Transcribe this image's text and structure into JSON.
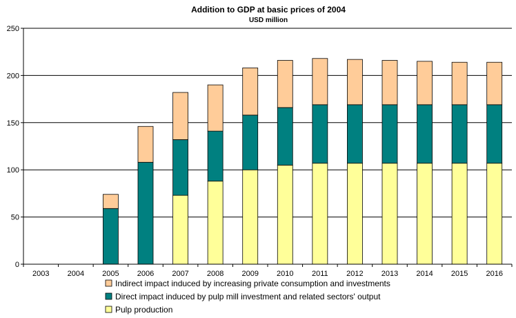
{
  "chart_data": {
    "type": "bar",
    "stacked": true,
    "title": "Addition to GDP at basic prices of 2004",
    "subtitle": "USD million",
    "xlabel": "",
    "ylabel": "",
    "ylim": [
      0,
      250
    ],
    "yticks": [
      "0",
      "50",
      "100",
      "150",
      "200",
      "250"
    ],
    "grid": true,
    "legend_position": "bottom",
    "categories": [
      "2003",
      "2004",
      "2005",
      "2006",
      "2007",
      "2008",
      "2009",
      "2010",
      "2011",
      "2012",
      "2013",
      "2014",
      "2015",
      "2016"
    ],
    "series": [
      {
        "name": "Pulp production",
        "color": "#FFFF99",
        "values": [
          0,
          0,
          0,
          0,
          73,
          88,
          100,
          105,
          107,
          107,
          107,
          107,
          107,
          107
        ]
      },
      {
        "name": "Direct impact induced by pulp mill investment and related sectors' output",
        "color": "#008080",
        "values": [
          0,
          0,
          59,
          108,
          59,
          53,
          58,
          61,
          62,
          62,
          62,
          62,
          62,
          62
        ]
      },
      {
        "name": "Indirect impact induced by increasing private consumption and investments",
        "color": "#FFCC99",
        "values": [
          0,
          0,
          15,
          38,
          50,
          49,
          50,
          50,
          49,
          48,
          47,
          46,
          45,
          45
        ]
      }
    ],
    "legend_order": [
      2,
      1,
      0
    ]
  }
}
